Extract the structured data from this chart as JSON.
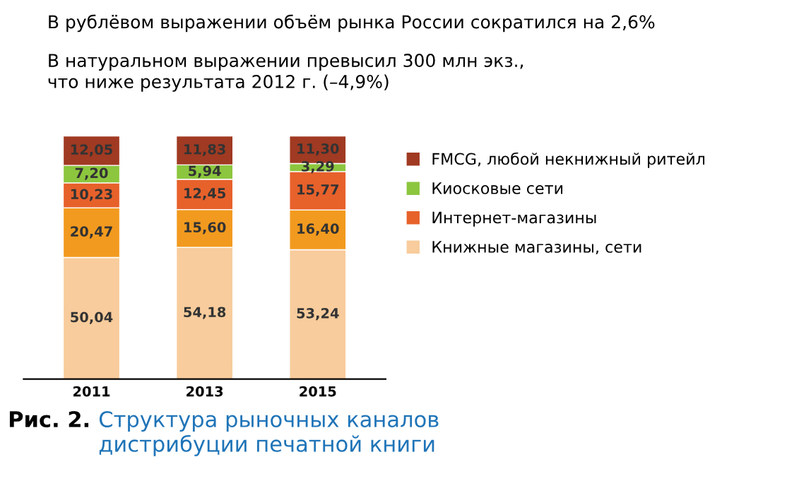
{
  "chart_data": {
    "type": "bar",
    "stacked": true,
    "title": "В рублёвом выражении объём рынка России сократился на 2,6%",
    "subtitle": "В натуральном выражении превысил 300 млн экз.,\nчто ниже результата 2012 г. (–4,9%)",
    "annotations": [
      "Рис. 2.",
      "Структура рыночных каналов\nдистрибуции печатной книги"
    ],
    "categories": [
      "2011",
      "2013",
      "2015"
    ],
    "legend": "right",
    "series": [
      {
        "name": "Книжные магазины, сети",
        "color": "#f8cc9c",
        "values": [
          50.04,
          54.18,
          53.24
        ],
        "value_labels": [
          "50,04",
          "54,18",
          "53,24"
        ]
      },
      {
        "color": "#f29a1f",
        "values": [
          20.47,
          15.6,
          16.4
        ],
        "value_labels": [
          "20,47",
          "15,60",
          "16,40"
        ]
      },
      {
        "name": "Интернет-магазины",
        "color": "#e7612b",
        "values": [
          10.23,
          12.45,
          15.77
        ],
        "value_labels": [
          "10,23",
          "12,45",
          "15,77"
        ]
      },
      {
        "name": "Киосковые сети",
        "color": "#8cc63e",
        "values": [
          7.2,
          5.94,
          3.29
        ],
        "value_labels": [
          "7,20",
          "5,94",
          "3,29"
        ]
      },
      {
        "name": "FMCG, любой некнижный ритейл",
        "color": "#a03a22",
        "values": [
          12.05,
          11.83,
          11.3
        ],
        "value_labels": [
          "12,05",
          "11,83",
          "11,30"
        ]
      }
    ]
  }
}
